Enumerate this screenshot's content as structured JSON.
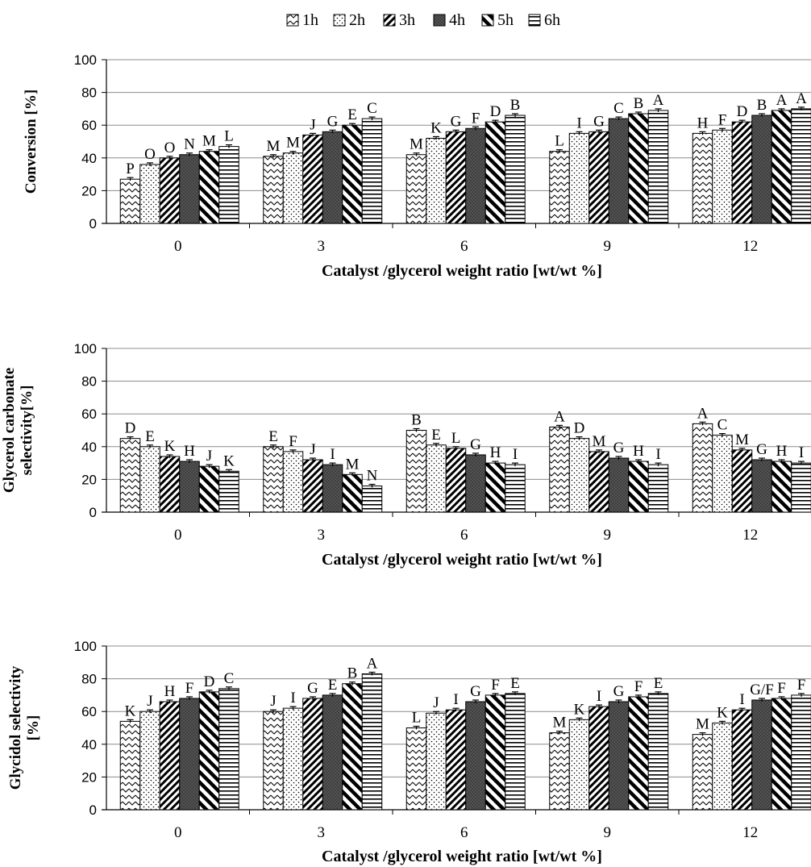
{
  "legend": {
    "entries": [
      {
        "label": "1h",
        "pattern": "zigzag"
      },
      {
        "label": "2h",
        "pattern": "dots"
      },
      {
        "label": "3h",
        "pattern": "diag-dense"
      },
      {
        "label": "4h",
        "pattern": "dark-crosshatch"
      },
      {
        "label": "5h",
        "pattern": "diag-wide"
      },
      {
        "label": "6h",
        "pattern": "horizontal"
      }
    ]
  },
  "colors": {
    "bar_stroke": "#000000",
    "grid": "#8c8c8c",
    "dark_fill": "#555555"
  },
  "chart_data": [
    {
      "type": "bar",
      "xlabel": "Catalyst /glycerol weight ratio  [wt/wt %]",
      "ylabel": [
        "Conversion [%]"
      ],
      "ylim": [
        0,
        100
      ],
      "yticks": [
        "0",
        "20",
        "40",
        "60",
        "80",
        "100"
      ],
      "grid": true,
      "categories": [
        "0",
        "3",
        "6",
        "9",
        "12"
      ],
      "series": [
        {
          "name": "1h",
          "values": [
            27,
            41,
            42,
            44,
            55
          ],
          "letters": [
            "P",
            "M",
            "M",
            "L",
            "H"
          ]
        },
        {
          "name": "2h",
          "values": [
            36,
            43,
            52,
            55,
            57
          ],
          "letters": [
            "O",
            "M",
            "K",
            "I",
            "F"
          ]
        },
        {
          "name": "3h",
          "values": [
            40,
            54,
            56,
            56,
            62
          ],
          "letters": [
            "O",
            "J",
            "G",
            "G",
            "D"
          ]
        },
        {
          "name": "4h",
          "values": [
            42,
            56,
            58,
            64,
            66
          ],
          "letters": [
            "N",
            "G",
            "F",
            "C",
            "B"
          ]
        },
        {
          "name": "5h",
          "values": [
            44,
            60,
            62,
            67,
            69
          ],
          "letters": [
            "M",
            "E",
            "D",
            "B",
            "A"
          ]
        },
        {
          "name": "6h",
          "values": [
            47,
            64,
            66,
            69,
            70
          ],
          "letters": [
            "L",
            "C",
            "B",
            "A",
            "A"
          ]
        }
      ]
    },
    {
      "type": "bar",
      "xlabel": "Catalyst /glycerol weight ratio  [wt/wt %]",
      "ylabel": [
        "Glycerol carbonate",
        "selectivity[%]"
      ],
      "ylim": [
        0,
        100
      ],
      "yticks": [
        "0",
        "20",
        "40",
        "60",
        "80",
        "100"
      ],
      "grid": true,
      "categories": [
        "0",
        "3",
        "6",
        "9",
        "12"
      ],
      "series": [
        {
          "name": "1h",
          "values": [
            45,
            40,
            50,
            52,
            54
          ],
          "letters": [
            "D",
            "E",
            "B",
            "A",
            "A"
          ]
        },
        {
          "name": "2h",
          "values": [
            40,
            37,
            41,
            45,
            47
          ],
          "letters": [
            "E",
            "F",
            "E",
            "D",
            "C"
          ]
        },
        {
          "name": "3h",
          "values": [
            34,
            32,
            39,
            37,
            38
          ],
          "letters": [
            "K",
            "J",
            "L",
            "M",
            "M"
          ]
        },
        {
          "name": "4h",
          "values": [
            31,
            29,
            35,
            33,
            32
          ],
          "letters": [
            "H",
            "I",
            "G",
            "G",
            "G"
          ]
        },
        {
          "name": "5h",
          "values": [
            28,
            23,
            30,
            31,
            31
          ],
          "letters": [
            "J",
            "M",
            "H",
            "H",
            "H"
          ]
        },
        {
          "name": "6h",
          "values": [
            25,
            16,
            29,
            29,
            30
          ],
          "letters": [
            "K",
            "N",
            "I",
            "I",
            "I"
          ]
        }
      ]
    },
    {
      "type": "bar",
      "xlabel": "Catalyst /glycerol weight ratio  [wt/wt %]",
      "ylabel": [
        "Glycidol selectivity",
        "[%]"
      ],
      "ylim": [
        0,
        100
      ],
      "yticks": [
        "0",
        "20",
        "40",
        "60",
        "80",
        "100"
      ],
      "grid": true,
      "categories": [
        "0",
        "3",
        "6",
        "9",
        "12"
      ],
      "series": [
        {
          "name": "1h",
          "values": [
            54,
            60,
            50,
            47,
            46
          ],
          "letters": [
            "K",
            "J",
            "L",
            "M",
            "M"
          ]
        },
        {
          "name": "2h",
          "values": [
            60,
            62,
            59,
            55,
            53
          ],
          "letters": [
            "J",
            "I",
            "J",
            "K",
            "K"
          ]
        },
        {
          "name": "3h",
          "values": [
            66,
            68,
            61,
            63,
            61
          ],
          "letters": [
            "H",
            "G",
            "I",
            "I",
            "I"
          ]
        },
        {
          "name": "4h",
          "values": [
            68,
            70,
            66,
            66,
            67
          ],
          "letters": [
            "F",
            "E",
            "G",
            "G",
            "G/F"
          ]
        },
        {
          "name": "5h",
          "values": [
            72,
            77,
            70,
            69,
            68
          ],
          "letters": [
            "D",
            "B",
            "F",
            "F",
            "F"
          ]
        },
        {
          "name": "6h",
          "values": [
            74,
            83,
            71,
            71,
            70
          ],
          "letters": [
            "C",
            "A",
            "E",
            "E",
            "F"
          ]
        }
      ]
    }
  ]
}
